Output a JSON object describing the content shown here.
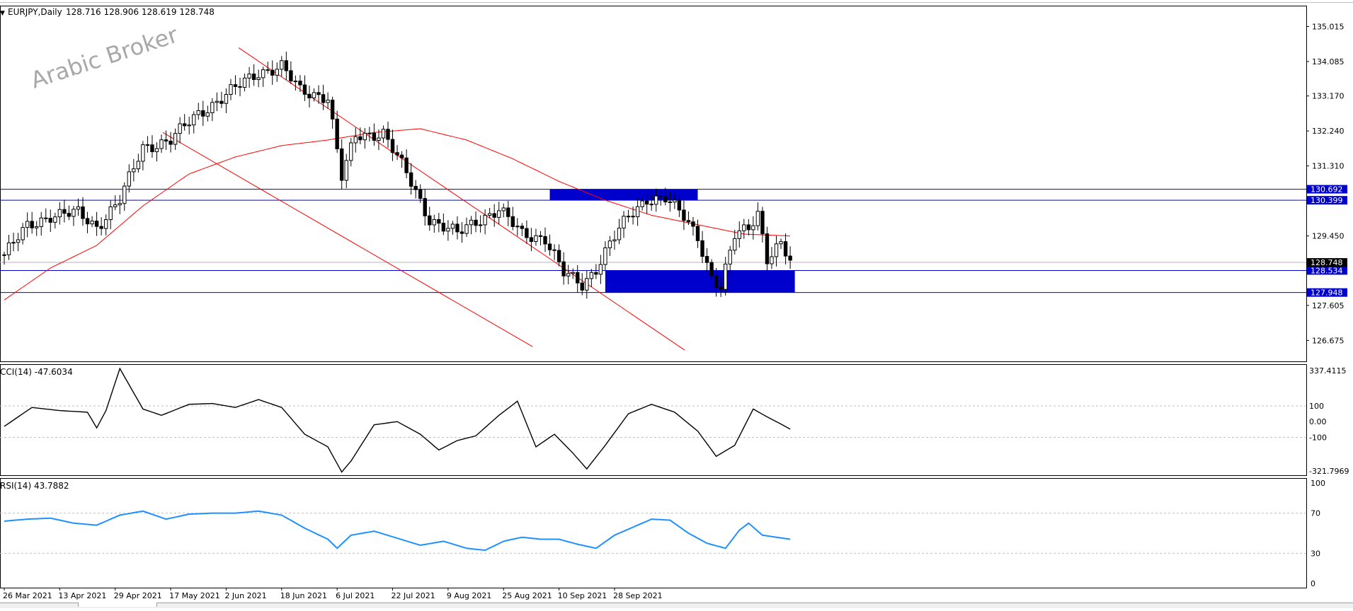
{
  "window": {
    "menu_glyph": "▼",
    "title": "EURJPY,Daily",
    "ohlc": "128.716 128.906 128.619 128.748"
  },
  "watermark": "Arabic Broker",
  "price_axis": {
    "ticks": [
      "135.015",
      "134.085",
      "133.170",
      "132.240",
      "131.310",
      "129.450",
      "127.605",
      "126.675"
    ],
    "tick_values": [
      135.015,
      134.085,
      133.17,
      132.24,
      131.31,
      129.45,
      127.605,
      126.675
    ],
    "range": [
      126.1,
      135.55
    ],
    "current_price_label": "128.748",
    "current_price_value": 128.748
  },
  "levels": [
    {
      "label": "130.692",
      "value": 130.692,
      "color": "#0000cd"
    },
    {
      "label": "130.399",
      "value": 130.399,
      "color": "#0000cd"
    },
    {
      "label": "128.534",
      "value": 128.534,
      "color": "#0000cd"
    },
    {
      "label": "127.948",
      "value": 127.948,
      "color": "#0000cd"
    }
  ],
  "zones": [
    {
      "from_candle": 118,
      "to_candle": 150,
      "top": 130.692,
      "bottom": 130.399,
      "color": "#0000cd"
    },
    {
      "from_candle": 130,
      "to_candle": 171,
      "top": 128.534,
      "bottom": 127.948,
      "color": "#0000cd"
    }
  ],
  "trendlines": [
    {
      "from": [
        "2021-06-05",
        134.45
      ],
      "to": [
        "2021-10-18",
        126.42
      ],
      "color": "#ff0000"
    },
    {
      "from": [
        "2021-05-13",
        132.2
      ],
      "to": [
        "2021-09-02",
        126.51
      ],
      "color": "#ff0000"
    }
  ],
  "moving_average_color": "#ff0000",
  "bull_candle_color": "#000000",
  "bear_candle_color": "#000000",
  "x_axis": {
    "labels": [
      "26 Mar 2021",
      "13 Apr 2021",
      "29 Apr 2021",
      "17 May 2021",
      "2 Jun 2021",
      "18 Jun 2021",
      "6 Jul 2021",
      "22 Jul 2021",
      "9 Aug 2021",
      "25 Aug 2021",
      "10 Sep 2021",
      "28 Sep 2021"
    ]
  },
  "cci": {
    "label": "CCI(14) -47.6034",
    "ticks": [
      "337.4115",
      "100",
      "0.00",
      "-100",
      "-321.7969"
    ],
    "tick_values": [
      337.4115,
      100,
      0,
      -100,
      -321.7969
    ],
    "levels": [
      100,
      -100
    ],
    "range": [
      -340,
      360
    ],
    "color": "#000000"
  },
  "rsi": {
    "label": "RSI(14) 43.7882",
    "ticks": [
      "100",
      "70",
      "30",
      "0"
    ],
    "tick_values": [
      100,
      70,
      30,
      0
    ],
    "levels": [
      70,
      30
    ],
    "range": [
      0,
      100
    ],
    "color": "#1e90ff"
  },
  "chart_data": {
    "type": "candlestick",
    "title": "EURJPY,Daily",
    "series": [
      {
        "name": "EURJPY",
        "keypoints": [
          [
            0,
            128.95
          ],
          [
            5,
            129.7
          ],
          [
            10,
            130.0
          ],
          [
            16,
            130.05
          ],
          [
            20,
            129.7
          ],
          [
            25,
            130.4
          ],
          [
            30,
            131.8
          ],
          [
            36,
            132.0
          ],
          [
            42,
            132.7
          ],
          [
            48,
            133.2
          ],
          [
            55,
            133.8
          ],
          [
            60,
            133.95
          ],
          [
            64,
            133.3
          ],
          [
            70,
            133.15
          ],
          [
            73,
            131.0
          ],
          [
            76,
            132.1
          ],
          [
            82,
            132.2
          ],
          [
            87,
            131.1
          ],
          [
            92,
            129.9
          ],
          [
            98,
            129.5
          ],
          [
            102,
            129.85
          ],
          [
            107,
            130.15
          ],
          [
            112,
            129.5
          ],
          [
            117,
            129.4
          ],
          [
            121,
            128.45
          ],
          [
            125,
            128.15
          ],
          [
            128,
            128.6
          ],
          [
            131,
            129.25
          ],
          [
            135,
            129.95
          ],
          [
            139,
            130.45
          ],
          [
            143,
            130.45
          ],
          [
            147,
            129.95
          ],
          [
            150,
            129.45
          ],
          [
            153,
            128.35
          ],
          [
            155,
            128.05
          ],
          [
            158,
            129.45
          ],
          [
            161,
            129.7
          ],
          [
            163,
            130.1
          ],
          [
            165,
            128.85
          ],
          [
            168,
            129.2
          ],
          [
            170,
            128.75
          ]
        ]
      },
      {
        "name": "",
        "keypoints": [
          [
            0,
            127.75
          ],
          [
            10,
            128.6
          ],
          [
            20,
            129.2
          ],
          [
            30,
            130.25
          ],
          [
            40,
            131.1
          ],
          [
            50,
            131.55
          ],
          [
            60,
            131.85
          ],
          [
            70,
            132.0
          ],
          [
            80,
            132.2
          ],
          [
            90,
            132.3
          ],
          [
            100,
            132.0
          ],
          [
            110,
            131.5
          ],
          [
            120,
            130.9
          ],
          [
            130,
            130.4
          ],
          [
            140,
            130.0
          ],
          [
            150,
            129.75
          ],
          [
            160,
            129.5
          ],
          [
            170,
            129.45
          ]
        ]
      },
      {
        "name": "CCI(14)",
        "keypoints": [
          [
            0,
            -30
          ],
          [
            6,
            90
          ],
          [
            12,
            70
          ],
          [
            18,
            60
          ],
          [
            20,
            -40
          ],
          [
            22,
            70
          ],
          [
            25,
            337
          ],
          [
            30,
            80
          ],
          [
            34,
            40
          ],
          [
            40,
            110
          ],
          [
            45,
            115
          ],
          [
            50,
            90
          ],
          [
            55,
            140
          ],
          [
            60,
            90
          ],
          [
            65,
            -80
          ],
          [
            70,
            -160
          ],
          [
            73,
            -320
          ],
          [
            75,
            -250
          ],
          [
            80,
            -20
          ],
          [
            85,
            0
          ],
          [
            90,
            -80
          ],
          [
            94,
            -180
          ],
          [
            98,
            -120
          ],
          [
            102,
            -90
          ],
          [
            107,
            40
          ],
          [
            111,
            130
          ],
          [
            115,
            -160
          ],
          [
            119,
            -80
          ],
          [
            123,
            -200
          ],
          [
            126,
            -300
          ],
          [
            130,
            -150
          ],
          [
            135,
            50
          ],
          [
            140,
            110
          ],
          [
            145,
            60
          ],
          [
            150,
            -60
          ],
          [
            154,
            -220
          ],
          [
            158,
            -150
          ],
          [
            162,
            80
          ],
          [
            165,
            30
          ],
          [
            168,
            -15
          ],
          [
            170,
            -48
          ]
        ]
      },
      {
        "name": "RSI(14)",
        "keypoints": [
          [
            0,
            62
          ],
          [
            5,
            64
          ],
          [
            10,
            65
          ],
          [
            15,
            60
          ],
          [
            20,
            58
          ],
          [
            25,
            68
          ],
          [
            30,
            72
          ],
          [
            35,
            64
          ],
          [
            40,
            69
          ],
          [
            45,
            70
          ],
          [
            50,
            70
          ],
          [
            55,
            72
          ],
          [
            60,
            68
          ],
          [
            65,
            55
          ],
          [
            70,
            44
          ],
          [
            72,
            35
          ],
          [
            75,
            48
          ],
          [
            80,
            52
          ],
          [
            85,
            45
          ],
          [
            90,
            38
          ],
          [
            95,
            42
          ],
          [
            100,
            35
          ],
          [
            104,
            33
          ],
          [
            108,
            42
          ],
          [
            112,
            46
          ],
          [
            116,
            44
          ],
          [
            120,
            44
          ],
          [
            124,
            39
          ],
          [
            128,
            35
          ],
          [
            132,
            48
          ],
          [
            136,
            56
          ],
          [
            140,
            64
          ],
          [
            144,
            63
          ],
          [
            148,
            50
          ],
          [
            152,
            40
          ],
          [
            156,
            35
          ],
          [
            159,
            53
          ],
          [
            161,
            60
          ],
          [
            164,
            48
          ],
          [
            167,
            46
          ],
          [
            170,
            44
          ]
        ]
      }
    ]
  }
}
